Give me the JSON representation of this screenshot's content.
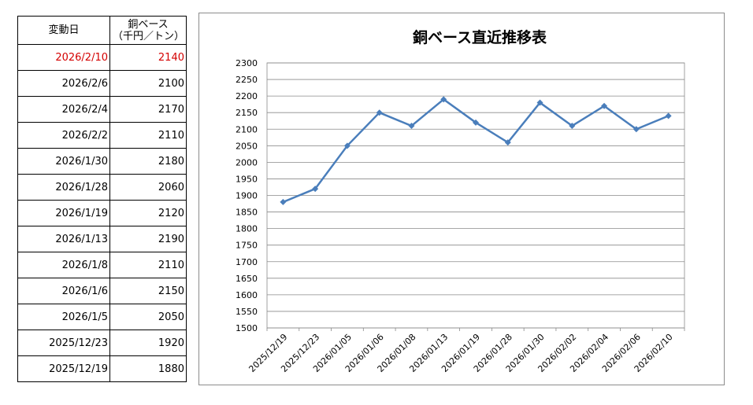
{
  "table": {
    "header_date": "変動日",
    "header_value_line1": "銅ベース",
    "header_value_line2": "（千円／トン）",
    "rows": [
      {
        "date": "2026/2/10",
        "value": "2140"
      },
      {
        "date": "2026/2/6",
        "value": "2100"
      },
      {
        "date": "2026/2/4",
        "value": "2170"
      },
      {
        "date": "2026/2/2",
        "value": "2110"
      },
      {
        "date": "2026/1/30",
        "value": "2180"
      },
      {
        "date": "2026/1/28",
        "value": "2060"
      },
      {
        "date": "2026/1/19",
        "value": "2120"
      },
      {
        "date": "2026/1/13",
        "value": "2190"
      },
      {
        "date": "2026/1/8",
        "value": "2110"
      },
      {
        "date": "2026/1/6",
        "value": "2150"
      },
      {
        "date": "2026/1/5",
        "value": "2050"
      },
      {
        "date": "2025/12/23",
        "value": "1920"
      },
      {
        "date": "2025/12/19",
        "value": "1880"
      }
    ],
    "highlight_color": "#d40000"
  },
  "chart_data": {
    "type": "line",
    "title": "銅ベース直近推移表",
    "xlabel": "",
    "ylabel": "",
    "categories": [
      "2025/12/19",
      "2025/12/23",
      "2026/01/05",
      "2026/01/06",
      "2026/01/08",
      "2026/01/13",
      "2026/01/19",
      "2026/01/28",
      "2026/01/30",
      "2026/02/02",
      "2026/02/04",
      "2026/02/06",
      "2026/02/10"
    ],
    "series": [
      {
        "values": [
          1880,
          1920,
          2050,
          2150,
          2110,
          2190,
          2120,
          2060,
          2180,
          2110,
          2170,
          2100,
          2140
        ],
        "color": "#4a7ebb"
      }
    ],
    "ylim": [
      1500,
      2300
    ],
    "yticks": [
      1500,
      1550,
      1600,
      1650,
      1700,
      1750,
      1800,
      1850,
      1900,
      1950,
      2000,
      2050,
      2100,
      2150,
      2200,
      2250,
      2300
    ],
    "grid": true,
    "legend": "none",
    "marker": "diamond"
  }
}
